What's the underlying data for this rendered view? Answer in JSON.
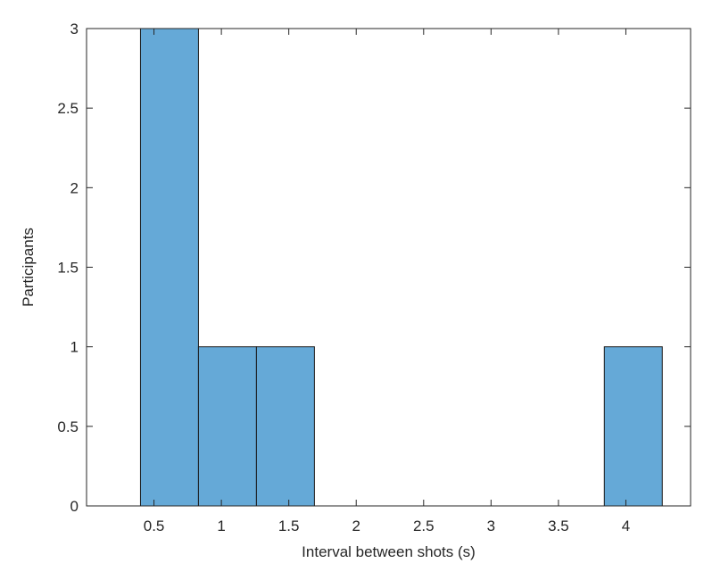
{
  "chart_data": {
    "type": "bar",
    "subtype": "histogram",
    "title": "",
    "xlabel": "Interval between shots (s)",
    "ylabel": "Participants",
    "xlim": [
      0.0,
      4.48
    ],
    "ylim": [
      0,
      3
    ],
    "bins": [
      {
        "start": 0.4,
        "end": 0.83,
        "count": 3
      },
      {
        "start": 0.83,
        "end": 1.26,
        "count": 1
      },
      {
        "start": 1.26,
        "end": 1.69,
        "count": 1
      },
      {
        "start": 1.69,
        "end": 2.12,
        "count": 0
      },
      {
        "start": 2.12,
        "end": 2.55,
        "count": 0
      },
      {
        "start": 2.55,
        "end": 2.98,
        "count": 0
      },
      {
        "start": 2.98,
        "end": 3.41,
        "count": 0
      },
      {
        "start": 3.41,
        "end": 3.84,
        "count": 0
      },
      {
        "start": 3.84,
        "end": 4.27,
        "count": 1
      }
    ],
    "x_ticks": [
      0.5,
      1,
      1.5,
      2,
      2.5,
      3,
      3.5,
      4
    ],
    "x_tick_labels": [
      "0.5",
      "1",
      "1.5",
      "2",
      "2.5",
      "3",
      "3.5",
      "4"
    ],
    "y_ticks": [
      0,
      0.5,
      1,
      1.5,
      2,
      2.5,
      3
    ],
    "y_tick_labels": [
      "0",
      "0.5",
      "1",
      "1.5",
      "2",
      "2.5",
      "3"
    ],
    "grid": false,
    "legend": "none",
    "bar_color": "#65a9d7",
    "bar_edge_color": "#1a1a1a",
    "axis_color": "#262626"
  }
}
